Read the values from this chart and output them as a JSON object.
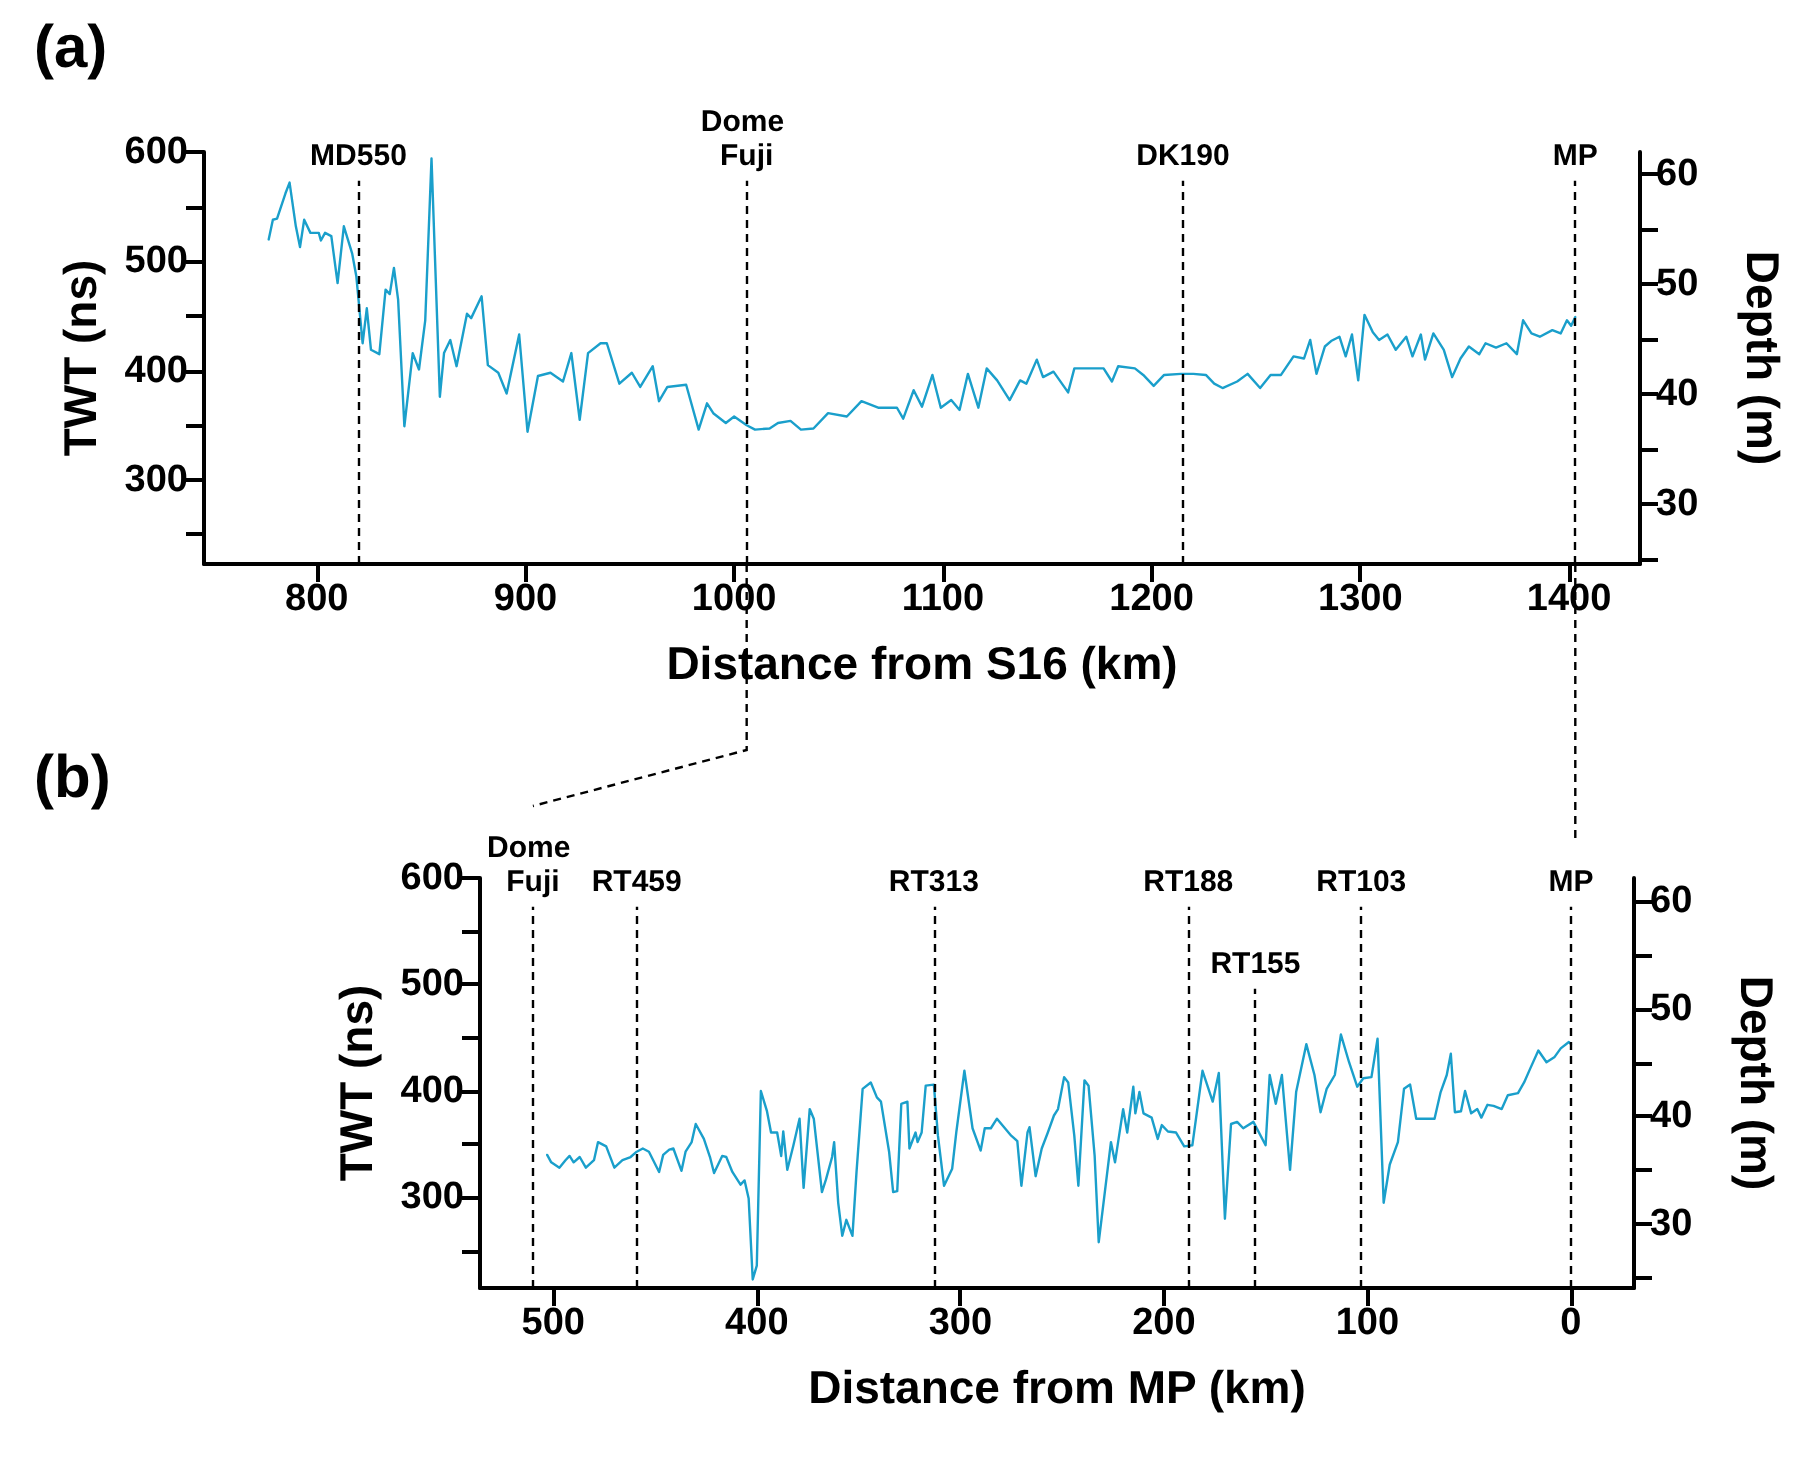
{
  "chart_data": [
    {
      "type": "line",
      "title": "(a)",
      "xlabel": "Distance from S16 (km)",
      "ylabel": "TWT (ns)",
      "y2label": "Depth (m)",
      "xlim": [
        746,
        1434
      ],
      "xticks": [
        800,
        900,
        1000,
        1100,
        1200,
        1300,
        1400
      ],
      "ylim": [
        223,
        600
      ],
      "yticks": [
        600,
        {
          "value": 550,
          "label": null
        },
        500,
        {
          "value": 450,
          "label": null
        },
        400,
        {
          "value": 350,
          "label": null
        },
        300,
        {
          "value": 250,
          "label": null
        }
      ],
      "y2lim": [
        24.5,
        62
      ],
      "y2ticks": [
        60,
        {
          "value": 55,
          "label": null
        },
        50,
        {
          "value": 45,
          "label": null
        },
        40,
        {
          "value": 35,
          "label": null
        },
        30,
        {
          "value": 25,
          "label": null
        }
      ],
      "grid": false,
      "marker": "none",
      "line_style": "solid",
      "series": [
        {
          "color": "#1a9fcb",
          "x": [
            777,
            779,
            781,
            785,
            787,
            790,
            792,
            794,
            797,
            801,
            802,
            804,
            807,
            810,
            813,
            817,
            819,
            822,
            824,
            826,
            830,
            833,
            835,
            837,
            839,
            842,
            846,
            849,
            852,
            855,
            859,
            861,
            864,
            867,
            872,
            874,
            879,
            882,
            887,
            891,
            897,
            901,
            906,
            912,
            918,
            922,
            926,
            930,
            936,
            939,
            945,
            951,
            955,
            961,
            964,
            968,
            977,
            983,
            987,
            990,
            996,
            1000,
            1006,
            1010,
            1017,
            1021,
            1027,
            1032,
            1038,
            1045,
            1054,
            1061,
            1069,
            1078,
            1081,
            1086,
            1090,
            1095,
            1099,
            1104,
            1108,
            1112,
            1117,
            1121,
            1126,
            1132,
            1137,
            1140,
            1145,
            1148,
            1153,
            1160,
            1163,
            1169,
            1174,
            1177,
            1181,
            1184,
            1192,
            1196,
            1201,
            1206,
            1214,
            1220,
            1226,
            1230,
            1234,
            1241,
            1246,
            1252,
            1257,
            1262,
            1268,
            1273,
            1276,
            1279,
            1283,
            1286,
            1290,
            1293,
            1296,
            1299,
            1302,
            1306,
            1309,
            1313,
            1317,
            1322,
            1325,
            1329,
            1331,
            1335,
            1340,
            1344,
            1348,
            1352,
            1357,
            1360,
            1365,
            1370,
            1375,
            1378,
            1382,
            1386,
            1392,
            1396,
            1399,
            1401,
            1403
          ],
          "values": [
            520,
            538,
            539,
            562,
            572,
            532,
            513,
            538,
            526,
            526,
            519,
            526,
            523,
            480,
            532,
            507,
            486,
            425,
            457,
            419,
            415,
            474,
            470,
            494,
            465,
            349,
            416,
            401,
            446,
            594,
            376,
            416,
            428,
            404,
            452,
            448,
            468,
            405,
            398,
            379,
            433,
            344,
            395,
            398,
            390,
            416,
            355,
            416,
            425,
            425,
            388,
            398,
            385,
            404,
            372,
            385,
            387,
            346,
            370,
            361,
            352,
            358,
            350,
            346,
            347,
            352,
            354,
            346,
            347,
            361,
            358,
            372,
            366,
            366,
            356,
            382,
            367,
            396,
            366,
            373,
            364,
            397,
            366,
            402,
            391,
            373,
            391,
            388,
            410,
            394,
            399,
            380,
            402,
            402,
            402,
            402,
            390,
            404,
            402,
            396,
            386,
            396,
            397,
            397,
            396,
            388,
            384,
            390,
            397,
            384,
            396,
            396,
            413,
            411,
            428,
            397,
            422,
            427,
            431,
            413,
            433,
            391,
            451,
            435,
            428,
            433,
            419,
            431,
            413,
            433,
            410,
            434,
            419,
            394,
            411,
            422,
            415,
            425,
            421,
            425,
            415,
            446,
            434,
            431,
            437,
            434,
            446,
            441,
            449
          ]
        }
      ],
      "ref_lines": [
        {
          "axis": "x",
          "value": 820,
          "label": "MD550",
          "color": "#000000",
          "line_style": "dashed"
        },
        {
          "axis": "x",
          "value": 1006,
          "label": "Dome Fuji",
          "color": "#000000",
          "line_style": "dashed"
        },
        {
          "axis": "x",
          "value": 1215,
          "label": "DK190",
          "color": "#000000",
          "line_style": "dashed"
        },
        {
          "axis": "x",
          "value": 1403,
          "label": "MP",
          "color": "#000000",
          "line_style": "dashed"
        }
      ]
    },
    {
      "type": "line",
      "title": "(b)",
      "xlabel": "Distance from MP (km)",
      "ylabel": "TWT (ns)",
      "y2label": "Depth (m)",
      "xlim": [
        536,
        -31
      ],
      "xticks": [
        500,
        400,
        300,
        200,
        100,
        0
      ],
      "ylim": [
        215,
        600
      ],
      "yticks": [
        600,
        {
          "value": 550,
          "label": null
        },
        500,
        {
          "value": 450,
          "label": null
        },
        400,
        {
          "value": 350,
          "label": null
        },
        300,
        {
          "value": 250,
          "label": null
        }
      ],
      "y2lim": [
        24.1,
        62.1
      ],
      "y2ticks": [
        60,
        {
          "value": 55,
          "label": null
        },
        50,
        {
          "value": 45,
          "label": null
        },
        40,
        {
          "value": 35,
          "label": null
        },
        30,
        {
          "value": 25,
          "label": null
        }
      ],
      "grid": false,
      "marker": "none",
      "line_style": "solid",
      "series": [
        {
          "color": "#1a9fcb",
          "x": [
            503,
            501,
            497,
            494,
            492,
            490,
            487,
            484,
            480,
            478,
            474,
            470,
            466,
            462,
            459,
            456,
            453,
            448,
            446,
            443,
            441,
            437,
            435,
            432,
            430,
            426,
            423,
            421,
            417,
            415,
            412,
            408,
            406,
            404,
            402,
            400,
            398,
            395,
            393,
            390,
            388,
            387,
            385,
            382,
            379,
            377,
            374,
            372,
            368,
            366,
            363,
            362,
            360,
            358,
            356,
            353,
            351,
            348,
            344,
            341,
            339,
            335,
            333,
            331,
            329,
            326,
            325,
            322,
            321,
            319,
            317,
            313,
            311,
            308,
            304,
            302,
            298,
            294,
            290,
            288,
            285,
            282,
            275,
            272,
            270,
            267,
            266,
            263,
            260,
            257,
            254,
            252,
            249,
            247,
            244,
            242,
            239,
            237,
            234,
            232,
            229,
            226,
            224,
            220,
            218,
            215,
            214,
            212,
            210,
            206,
            203,
            201,
            198,
            194,
            190,
            186,
            181,
            176,
            173,
            170,
            167,
            164,
            161,
            156,
            150,
            148,
            145,
            142,
            138,
            135,
            130,
            126,
            123,
            120,
            116,
            113,
            109,
            105,
            102,
            98,
            95,
            92,
            89,
            85,
            82,
            79,
            76,
            72,
            67,
            64,
            61,
            59,
            57,
            54,
            52,
            49,
            46,
            44,
            41,
            38,
            34,
            31,
            26,
            23,
            20,
            16,
            12,
            8,
            5,
            1,
            0
          ],
          "values": [
            340,
            333,
            328,
            335,
            339,
            333,
            338,
            328,
            335,
            352,
            348,
            328,
            335,
            338,
            343,
            346,
            343,
            324,
            340,
            345,
            346,
            325,
            343,
            352,
            369,
            355,
            338,
            323,
            339,
            338,
            324,
            312,
            316,
            299,
            223,
            236,
            400,
            381,
            361,
            361,
            339,
            362,
            326,
            349,
            374,
            309,
            383,
            374,
            305,
            317,
            338,
            352,
            295,
            264,
            279,
            264,
            324,
            402,
            408,
            394,
            390,
            343,
            305,
            306,
            388,
            390,
            346,
            361,
            352,
            361,
            405,
            406,
            358,
            311,
            327,
            361,
            419,
            365,
            344,
            365,
            365,
            374,
            358,
            353,
            311,
            361,
            366,
            320,
            346,
            361,
            377,
            383,
            413,
            408,
            358,
            311,
            410,
            405,
            339,
            258,
            305,
            352,
            333,
            383,
            361,
            404,
            379,
            399,
            379,
            375,
            355,
            368,
            362,
            361,
            348,
            349,
            419,
            390,
            417,
            280,
            369,
            371,
            365,
            371,
            349,
            415,
            388,
            415,
            326,
            399,
            444,
            415,
            380,
            402,
            415,
            453,
            427,
            404,
            412,
            413,
            449,
            295,
            331,
            352,
            402,
            406,
            374,
            374,
            374,
            399,
            415,
            435,
            380,
            381,
            400,
            379,
            383,
            375,
            387,
            386,
            383,
            396,
            398,
            408,
            421,
            438,
            427,
            432,
            440,
            446,
            444
          ]
        }
      ],
      "ref_lines": [
        {
          "axis": "x",
          "value": 510,
          "label": "Dome Fuji",
          "color": "#000000",
          "line_style": "dashed"
        },
        {
          "axis": "x",
          "value": 459,
          "label": "RT459",
          "color": "#000000",
          "line_style": "dashed"
        },
        {
          "axis": "x",
          "value": 313,
          "label": "RT313",
          "color": "#000000",
          "line_style": "dashed"
        },
        {
          "axis": "x",
          "value": 188,
          "label": "RT188",
          "color": "#000000",
          "line_style": "dashed"
        },
        {
          "axis": "x",
          "value": 155,
          "label": "RT155",
          "color": "#000000",
          "line_style": "dashed"
        },
        {
          "axis": "x",
          "value": 103,
          "label": "RT103",
          "color": "#000000",
          "line_style": "dashed"
        },
        {
          "axis": "x",
          "value": 0,
          "label": "MP",
          "color": "#000000",
          "line_style": "dashed"
        }
      ]
    }
  ]
}
